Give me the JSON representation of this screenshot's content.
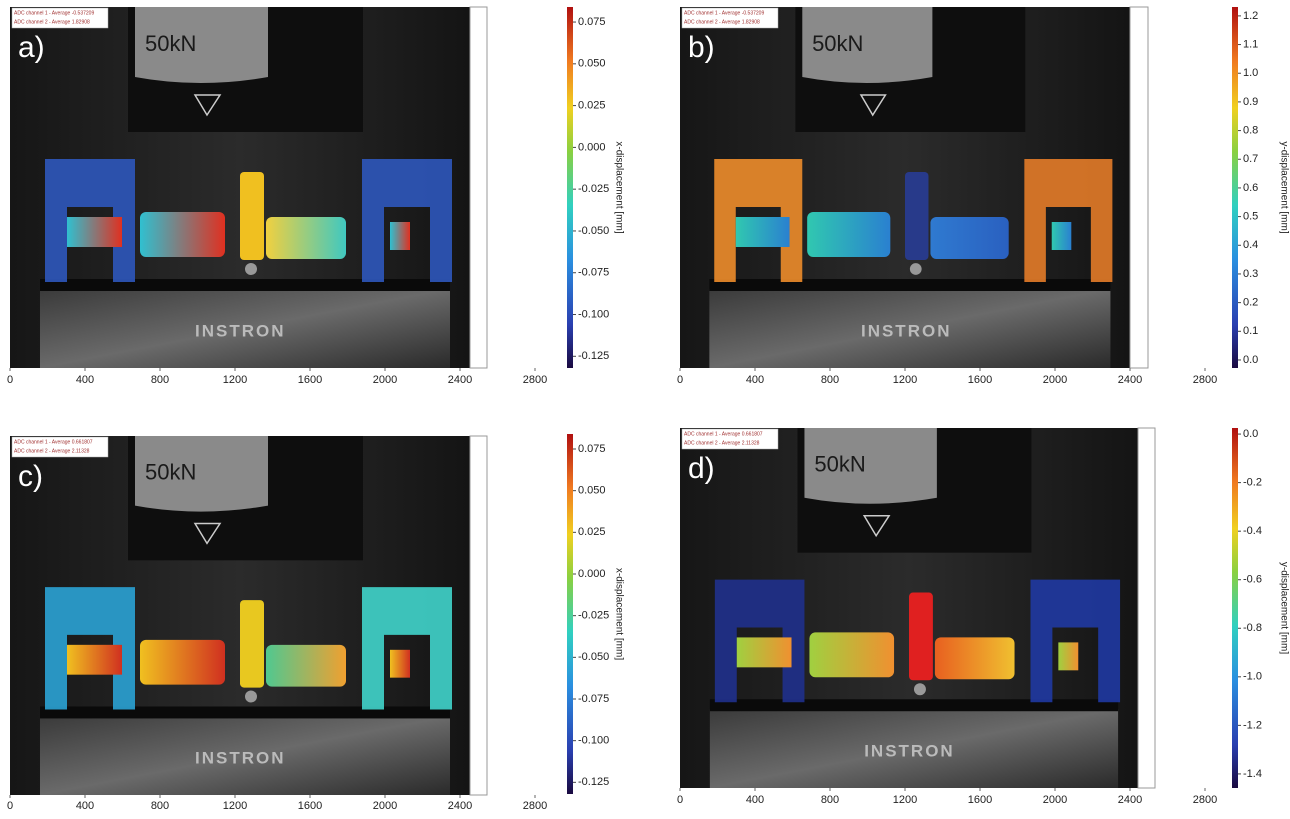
{
  "photo_labels": {
    "load": "50kN",
    "machine": "INSTRON"
  },
  "chart_data": [
    {
      "type": "heatmap",
      "panel_label": "a)",
      "colorbar_label": "x-displacement [mm]",
      "annotations": [
        "ADC channel 1 - Average -0.537209",
        "ADC channel 2 - Average 1.82908"
      ],
      "xlim": [
        0,
        3000
      ],
      "xticks": [
        0,
        400,
        800,
        1200,
        1600,
        2000,
        2400,
        2800
      ],
      "clim": [
        -0.132,
        0.084
      ],
      "cticks": [
        0.075,
        {
          "value": 0.05,
          "label": "0.050"
        },
        0.025,
        {
          "value": 0,
          "label": "0.000"
        },
        -0.025,
        {
          "value": -0.05,
          "label": "-0.050"
        },
        -0.075,
        {
          "value": -0.1,
          "label": "-0.100"
        },
        -0.125
      ]
    },
    {
      "type": "heatmap",
      "panel_label": "b)",
      "colorbar_label": "y-displacement [mm]",
      "annotations": [
        "ADC channel 1 - Average -0.537209",
        "ADC channel 2 - Average 1.82908"
      ],
      "xlim": [
        0,
        3000
      ],
      "xticks": [
        0,
        400,
        800,
        1200,
        1600,
        2000,
        2400,
        2800
      ],
      "clim": [
        -0.028,
        1.231
      ],
      "cticks": [
        1.2,
        1.1,
        {
          "value": 1,
          "label": "1.0"
        },
        0.9,
        0.8,
        0.7,
        0.6,
        0.5,
        0.4,
        0.3,
        0.2,
        0.1,
        {
          "value": 0,
          "label": "0.0"
        }
      ]
    },
    {
      "type": "heatmap",
      "panel_label": "c)",
      "colorbar_label": "x-displacement [mm]",
      "annotations": [
        "ADC channel 1 - Average 0.661807",
        "ADC channel 2 - Average 2.11328"
      ],
      "xlim": [
        0,
        3000
      ],
      "xticks": [
        0,
        400,
        800,
        1200,
        1600,
        2000,
        2400,
        2800
      ],
      "clim": [
        -0.132,
        0.084
      ],
      "cticks": [
        0.075,
        {
          "value": 0.05,
          "label": "0.050"
        },
        0.025,
        {
          "value": 0,
          "label": "0.000"
        },
        -0.025,
        {
          "value": -0.05,
          "label": "-0.050"
        },
        -0.075,
        {
          "value": -0.1,
          "label": "-0.100"
        },
        -0.125
      ]
    },
    {
      "type": "heatmap",
      "panel_label": "d)",
      "colorbar_label": "y-displacement [mm]",
      "annotations": [
        "ADC channel 1 - Average 0.661807",
        "ADC channel 2 - Average 2.11328"
      ],
      "xlim": [
        0,
        3000
      ],
      "xticks": [
        0,
        400,
        800,
        1200,
        1600,
        2000,
        2400,
        2800
      ],
      "clim": [
        -1.458,
        0.025
      ],
      "cticks": [
        {
          "value": 0,
          "label": "0.0"
        },
        -0.2,
        -0.4,
        -0.6,
        -0.8,
        {
          "value": -1,
          "label": "-1.0"
        },
        -1.2,
        -1.4
      ]
    }
  ]
}
